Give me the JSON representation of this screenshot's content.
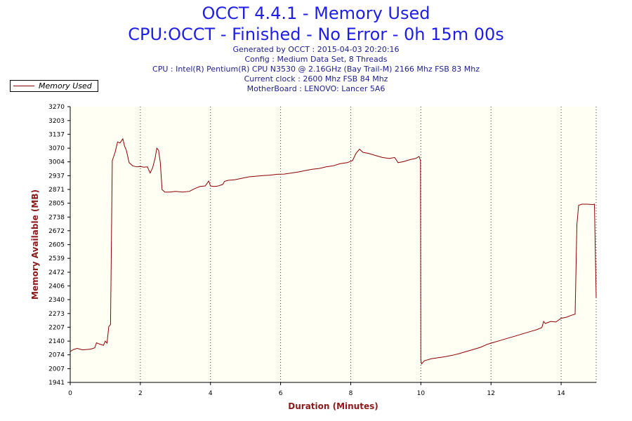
{
  "chart_data": {
    "type": "line",
    "title": "OCCT 4.4.1 - Memory Used",
    "subtitle": "CPU:OCCT - Finished - No Error - 0h 15m 00s",
    "info_lines": [
      "Generated by OCCT : 2015-04-03 20:20:16",
      "Config : Medium Data Set, 8 Threads",
      "CPU : Intel(R) Pentium(R) CPU N3530 @ 2.16GHz (Bay Trail-M) 2166 Mhz FSB 83 Mhz",
      "Current clock : 2600 Mhz FSB 84 Mhz",
      "MotherBoard : LENOVO: Lancer 5A6"
    ],
    "xlabel": "Duration (Minutes)",
    "ylabel": "Memory Available (MB)",
    "xlim": [
      0,
      15
    ],
    "ylim": [
      1941,
      3270
    ],
    "x_ticks": [
      0,
      2,
      4,
      6,
      8,
      10,
      12,
      14
    ],
    "y_ticks": [
      1941,
      2007,
      2074,
      2140,
      2207,
      2273,
      2340,
      2406,
      2472,
      2539,
      2605,
      2672,
      2738,
      2805,
      2871,
      2937,
      3004,
      3070,
      3137,
      3203,
      3270
    ],
    "grid": "vertical dotted",
    "legend": "top-left",
    "series": [
      {
        "name": "Memory Used",
        "color": "#8b0000",
        "points": [
          [
            0,
            2090
          ],
          [
            0.1,
            2100
          ],
          [
            0.2,
            2105
          ],
          [
            0.35,
            2098
          ],
          [
            0.5,
            2100
          ],
          [
            0.6,
            2102
          ],
          [
            0.7,
            2108
          ],
          [
            0.75,
            2132
          ],
          [
            0.85,
            2125
          ],
          [
            0.95,
            2120
          ],
          [
            1.0,
            2140
          ],
          [
            1.05,
            2130
          ],
          [
            1.1,
            2210
          ],
          [
            1.15,
            2220
          ],
          [
            1.2,
            3010
          ],
          [
            1.28,
            3050
          ],
          [
            1.35,
            3100
          ],
          [
            1.42,
            3095
          ],
          [
            1.5,
            3115
          ],
          [
            1.55,
            3080
          ],
          [
            1.6,
            3060
          ],
          [
            1.68,
            3000
          ],
          [
            1.78,
            2985
          ],
          [
            1.9,
            2980
          ],
          [
            2.0,
            2982
          ],
          [
            2.1,
            2978
          ],
          [
            2.2,
            2980
          ],
          [
            2.28,
            2950
          ],
          [
            2.35,
            2975
          ],
          [
            2.42,
            3020
          ],
          [
            2.47,
            3070
          ],
          [
            2.52,
            3060
          ],
          [
            2.57,
            3000
          ],
          [
            2.62,
            2870
          ],
          [
            2.7,
            2858
          ],
          [
            2.85,
            2858
          ],
          [
            3.0,
            2862
          ],
          [
            3.2,
            2858
          ],
          [
            3.4,
            2862
          ],
          [
            3.55,
            2875
          ],
          [
            3.7,
            2885
          ],
          [
            3.85,
            2888
          ],
          [
            3.95,
            2912
          ],
          [
            4.0,
            2888
          ],
          [
            4.1,
            2885
          ],
          [
            4.2,
            2887
          ],
          [
            4.35,
            2895
          ],
          [
            4.4,
            2910
          ],
          [
            4.5,
            2915
          ],
          [
            4.7,
            2918
          ],
          [
            4.9,
            2925
          ],
          [
            5.1,
            2932
          ],
          [
            5.3,
            2935
          ],
          [
            5.5,
            2938
          ],
          [
            5.7,
            2940
          ],
          [
            5.9,
            2944
          ],
          [
            6.1,
            2945
          ],
          [
            6.3,
            2950
          ],
          [
            6.5,
            2955
          ],
          [
            6.7,
            2962
          ],
          [
            6.9,
            2968
          ],
          [
            7.1,
            2972
          ],
          [
            7.3,
            2980
          ],
          [
            7.5,
            2985
          ],
          [
            7.7,
            2995
          ],
          [
            7.9,
            3000
          ],
          [
            8.05,
            3010
          ],
          [
            8.15,
            3045
          ],
          [
            8.25,
            3065
          ],
          [
            8.35,
            3050
          ],
          [
            8.5,
            3045
          ],
          [
            8.7,
            3035
          ],
          [
            8.9,
            3025
          ],
          [
            9.1,
            3020
          ],
          [
            9.25,
            3025
          ],
          [
            9.35,
            3000
          ],
          [
            9.5,
            3005
          ],
          [
            9.7,
            3015
          ],
          [
            9.85,
            3020
          ],
          [
            9.95,
            3030
          ],
          [
            9.99,
            3010
          ],
          [
            10.0,
            2050
          ],
          [
            10.02,
            2030
          ],
          [
            10.1,
            2045
          ],
          [
            10.3,
            2055
          ],
          [
            10.5,
            2060
          ],
          [
            10.7,
            2065
          ],
          [
            10.9,
            2072
          ],
          [
            11.1,
            2080
          ],
          [
            11.3,
            2090
          ],
          [
            11.5,
            2100
          ],
          [
            11.7,
            2110
          ],
          [
            11.9,
            2125
          ],
          [
            12.1,
            2135
          ],
          [
            12.3,
            2145
          ],
          [
            12.5,
            2155
          ],
          [
            12.7,
            2165
          ],
          [
            12.9,
            2175
          ],
          [
            13.1,
            2185
          ],
          [
            13.3,
            2195
          ],
          [
            13.45,
            2205
          ],
          [
            13.5,
            2235
          ],
          [
            13.55,
            2225
          ],
          [
            13.7,
            2235
          ],
          [
            13.85,
            2232
          ],
          [
            14.0,
            2250
          ],
          [
            14.15,
            2255
          ],
          [
            14.3,
            2265
          ],
          [
            14.4,
            2270
          ],
          [
            14.45,
            2700
          ],
          [
            14.5,
            2795
          ],
          [
            14.6,
            2800
          ],
          [
            14.75,
            2800
          ],
          [
            14.9,
            2798
          ],
          [
            14.95,
            2800
          ],
          [
            15.0,
            2350
          ]
        ]
      }
    ]
  }
}
